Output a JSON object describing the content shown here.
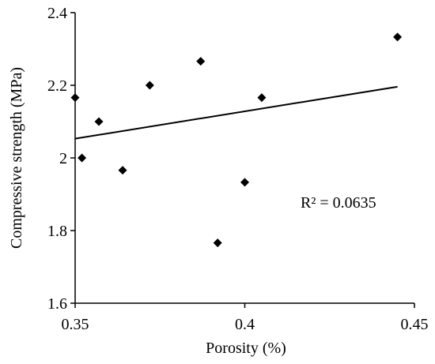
{
  "chart_data": {
    "type": "scatter",
    "title": "",
    "xlabel": "Porosity (%)",
    "ylabel": "Compressive strength (MPa)",
    "xlim": [
      0.35,
      0.45
    ],
    "ylim": [
      1.6,
      2.4
    ],
    "x_ticks": [
      {
        "value": 0.35,
        "label": "0.35"
      },
      {
        "value": 0.4,
        "label": "0.4"
      },
      {
        "value": 0.45,
        "label": "0.45"
      }
    ],
    "y_ticks": [
      {
        "value": 1.6,
        "label": "1.6"
      },
      {
        "value": 1.8,
        "label": "1.8"
      },
      {
        "value": 2.0,
        "label": "2"
      },
      {
        "value": 2.2,
        "label": "2.2"
      },
      {
        "value": 2.4,
        "label": "2.4"
      }
    ],
    "grid": false,
    "legend": "none",
    "marker": "diamond",
    "marker_color": "#000000",
    "points": [
      {
        "x": 0.35,
        "y": 2.166
      },
      {
        "x": 0.352,
        "y": 2.0
      },
      {
        "x": 0.357,
        "y": 2.1
      },
      {
        "x": 0.364,
        "y": 1.966
      },
      {
        "x": 0.372,
        "y": 2.2
      },
      {
        "x": 0.387,
        "y": 2.266
      },
      {
        "x": 0.392,
        "y": 1.766
      },
      {
        "x": 0.4,
        "y": 1.933
      },
      {
        "x": 0.405,
        "y": 2.166
      },
      {
        "x": 0.445,
        "y": 2.333
      }
    ],
    "trendline": {
      "type": "linear",
      "x": [
        0.35,
        0.445
      ],
      "y": [
        2.053,
        2.196
      ],
      "r2_label": "R² = 0.0635"
    }
  }
}
